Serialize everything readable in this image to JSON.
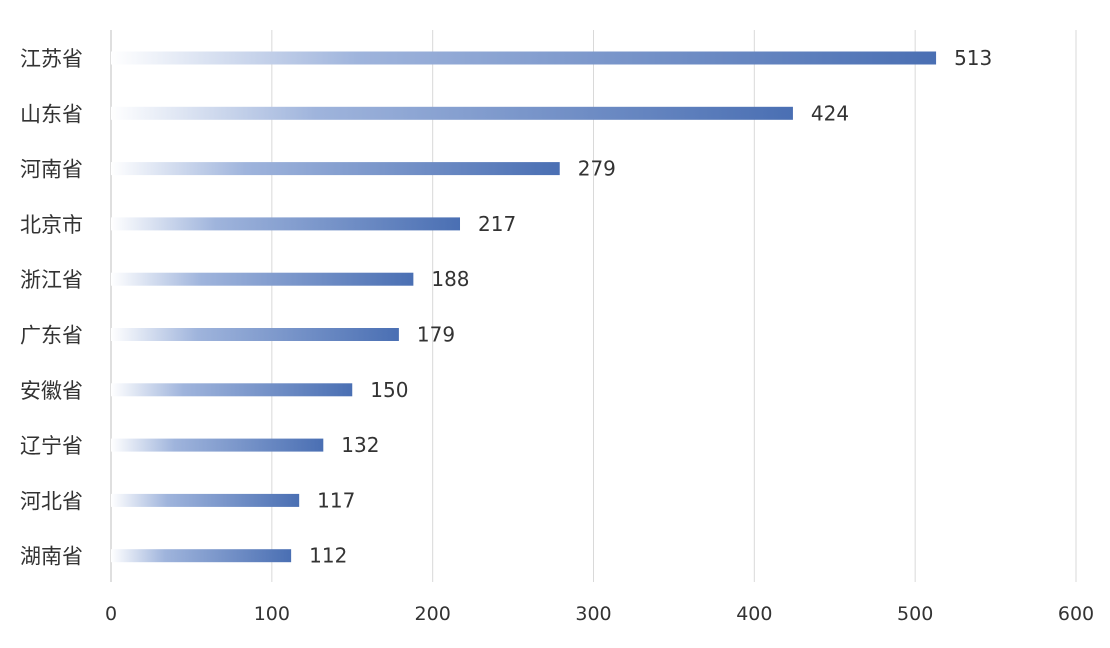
{
  "chart_data": {
    "type": "bar",
    "orientation": "horizontal",
    "title": "",
    "xlabel": "",
    "ylabel": "",
    "categories": [
      "江苏省",
      "山东省",
      "河南省",
      "北京市",
      "浙江省",
      "广东省",
      "安徽省",
      "辽宁省",
      "河北省",
      "湖南省"
    ],
    "values": [
      513,
      424,
      279,
      217,
      188,
      179,
      150,
      132,
      117,
      112
    ],
    "xlim": [
      0,
      600
    ],
    "xticks": [
      0,
      100,
      200,
      300,
      400,
      500,
      600
    ],
    "grid": true,
    "legend": "none",
    "bar_style": "gradient fade-in from left",
    "colors": {
      "bar_end": "#4a6fb3",
      "bar_start": "#ffffff",
      "grid": "#d9d9d9",
      "text": "#333333"
    }
  }
}
